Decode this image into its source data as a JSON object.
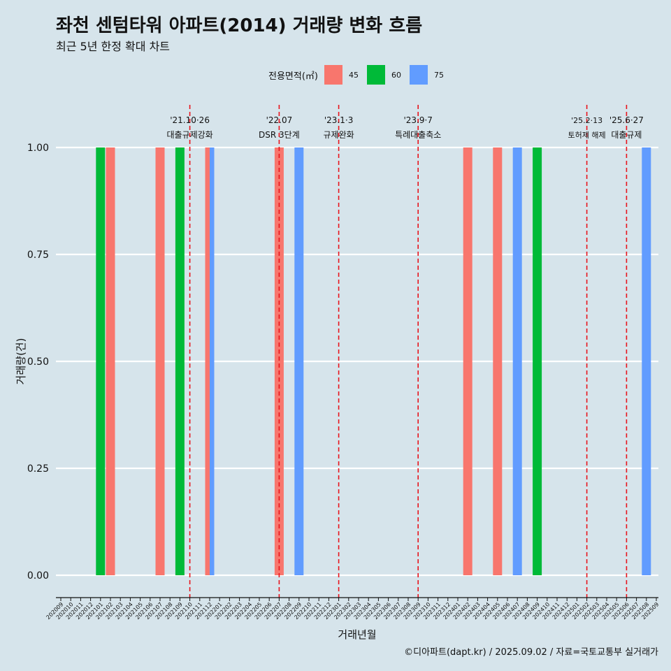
{
  "title": "좌천 센텀타워 아파트(2014) 거래량 변화 흐름",
  "subtitle": "최근 5년 한정 확대 차트",
  "caption": "©디아파트(dapt.kr) / 2025.09.02 / 자료=국토교통부 실거래가",
  "legend": {
    "title": "전용면적(㎡)",
    "items": [
      {
        "label": "45",
        "color": "#f8766d"
      },
      {
        "label": "60",
        "color": "#00ba38"
      },
      {
        "label": "75",
        "color": "#619cff"
      }
    ]
  },
  "chart_data": {
    "type": "bar",
    "xlabel": "거래년월",
    "ylabel": "거래량(건)",
    "ylim": [
      0,
      1
    ],
    "yticks": [
      "0.00",
      "0.25",
      "0.50",
      "0.75",
      "1.00"
    ],
    "grid": true,
    "legend_position": "top",
    "categories": [
      "202009",
      "202010",
      "202011",
      "202012",
      "202101",
      "202102",
      "202103",
      "202104",
      "202105",
      "202106",
      "202107",
      "202108",
      "202109",
      "202110",
      "202111",
      "202112",
      "202201",
      "202202",
      "202203",
      "202204",
      "202205",
      "202206",
      "202207",
      "202208",
      "202209",
      "202210",
      "202211",
      "202212",
      "202301",
      "202302",
      "202303",
      "202304",
      "202305",
      "202306",
      "202307",
      "202308",
      "202309",
      "202310",
      "202311",
      "202312",
      "202401",
      "202402",
      "202403",
      "202404",
      "202405",
      "202406",
      "202407",
      "202408",
      "202409",
      "202410",
      "202411",
      "202412",
      "202501",
      "202502",
      "202503",
      "202504",
      "202505",
      "202506",
      "202507",
      "202508",
      "202509"
    ],
    "series": [
      {
        "name": "45",
        "color": "#f8766d",
        "points": [
          {
            "x": "202102",
            "y": 1
          },
          {
            "x": "202107",
            "y": 1
          },
          {
            "x": "202112",
            "y": 1
          },
          {
            "x": "202207",
            "y": 1
          },
          {
            "x": "202402",
            "y": 1
          },
          {
            "x": "202405",
            "y": 1
          }
        ]
      },
      {
        "name": "60",
        "color": "#00ba38",
        "points": [
          {
            "x": "202101",
            "y": 1
          },
          {
            "x": "202109",
            "y": 1
          },
          {
            "x": "202409",
            "y": 1
          }
        ]
      },
      {
        "name": "75",
        "color": "#619cff",
        "points": [
          {
            "x": "202112",
            "y": 1
          },
          {
            "x": "202209",
            "y": 1
          },
          {
            "x": "202407",
            "y": 1
          },
          {
            "x": "202508",
            "y": 1
          }
        ]
      }
    ],
    "annotations": [
      {
        "x": "202110",
        "date": "'21.10·26",
        "label": "대출규제강화"
      },
      {
        "x": "202207",
        "date": "'22.07",
        "label": "DSR 3단계"
      },
      {
        "x": "202301",
        "date": "'23.1·3",
        "label": "규제완화"
      },
      {
        "x": "202309",
        "date": "'23.9·7",
        "label": "특례대출축소"
      },
      {
        "x": "202502",
        "date": "'25.2·13",
        "label": "토허제 해제"
      },
      {
        "x": "202506",
        "date": "'25.6·27",
        "label": "대출규제"
      }
    ]
  }
}
